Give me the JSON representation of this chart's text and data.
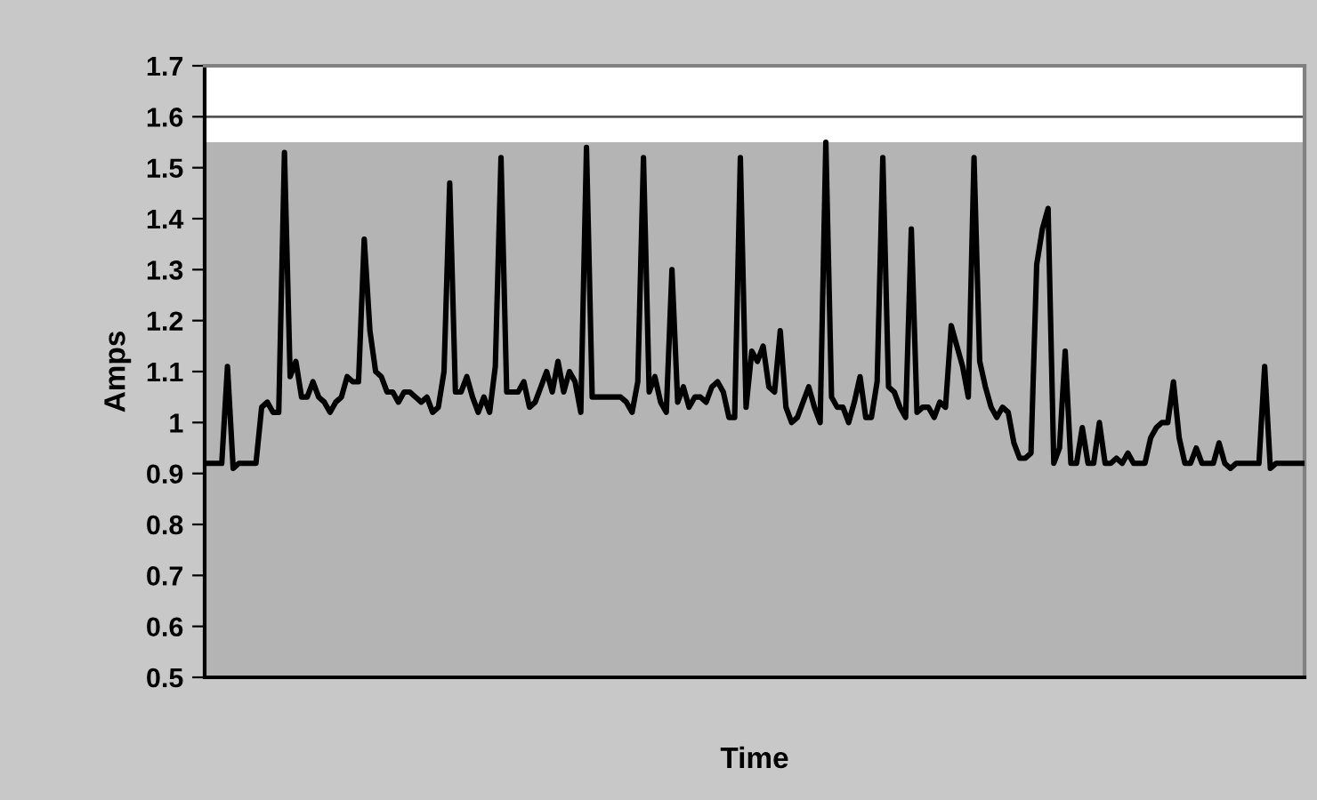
{
  "chart_data": {
    "type": "line",
    "xlabel": "Time",
    "ylabel": "Amps",
    "categories": [
      null,
      null,
      null,
      null,
      null,
      null,
      null,
      null,
      null,
      null,
      null,
      null,
      null,
      null,
      null,
      null,
      null,
      null,
      null,
      null,
      null,
      null,
      null,
      null,
      null,
      null,
      null,
      null,
      null,
      null,
      null,
      null,
      null,
      null,
      null,
      null,
      null,
      null,
      null,
      null,
      null,
      null,
      null,
      null,
      null,
      null,
      null,
      null,
      null,
      null,
      null,
      null,
      null,
      null,
      null,
      null,
      null,
      null,
      null,
      null,
      null,
      null,
      null,
      null,
      null,
      null,
      null,
      null,
      null,
      null,
      null,
      null,
      null,
      null,
      null,
      null,
      null,
      null,
      null,
      null,
      null,
      null,
      null,
      null,
      null,
      null,
      null,
      null,
      null,
      null,
      null,
      null,
      null,
      null,
      null,
      null,
      null,
      null,
      null,
      null,
      null,
      null,
      null,
      null,
      null,
      null,
      null,
      null,
      null,
      null,
      null,
      null,
      null,
      null,
      null,
      null,
      null,
      null,
      null,
      null,
      null,
      null,
      null,
      null,
      null,
      null,
      null,
      null,
      null,
      null,
      null,
      null,
      null,
      null,
      null,
      null,
      null,
      null,
      null,
      null,
      null,
      null,
      null,
      null,
      null,
      null,
      null,
      null,
      null,
      null,
      null,
      null,
      null,
      null,
      null,
      null,
      null,
      null,
      null,
      null,
      null,
      null,
      null,
      null,
      null,
      null,
      null,
      null,
      null,
      null,
      null,
      null,
      null,
      null,
      null,
      null,
      null,
      null,
      null,
      null,
      null,
      null,
      null,
      null,
      null,
      null,
      null,
      null,
      null,
      null,
      null,
      null,
      null,
      null
    ],
    "series": [
      {
        "color": "#000000",
        "values": [
          0.92,
          0.92,
          0.92,
          0.92,
          1.11,
          0.91,
          0.92,
          0.92,
          0.92,
          0.92,
          1.03,
          1.04,
          1.02,
          1.02,
          1.53,
          1.09,
          1.12,
          1.05,
          1.05,
          1.08,
          1.05,
          1.04,
          1.02,
          1.04,
          1.05,
          1.09,
          1.08,
          1.08,
          1.36,
          1.18,
          1.1,
          1.09,
          1.06,
          1.06,
          1.04,
          1.06,
          1.06,
          1.05,
          1.04,
          1.05,
          1.02,
          1.03,
          1.1,
          1.47,
          1.06,
          1.06,
          1.09,
          1.05,
          1.02,
          1.05,
          1.02,
          1.11,
          1.52,
          1.06,
          1.06,
          1.06,
          1.08,
          1.03,
          1.04,
          1.07,
          1.1,
          1.06,
          1.12,
          1.06,
          1.1,
          1.08,
          1.02,
          1.54,
          1.05,
          1.05,
          1.05,
          1.05,
          1.05,
          1.05,
          1.04,
          1.02,
          1.08,
          1.52,
          1.06,
          1.09,
          1.04,
          1.02,
          1.3,
          1.04,
          1.07,
          1.03,
          1.05,
          1.05,
          1.04,
          1.07,
          1.08,
          1.06,
          1.01,
          1.01,
          1.52,
          1.03,
          1.14,
          1.12,
          1.15,
          1.07,
          1.06,
          1.18,
          1.03,
          1.0,
          1.01,
          1.04,
          1.07,
          1.03,
          1.0,
          1.55,
          1.05,
          1.03,
          1.03,
          1.0,
          1.04,
          1.09,
          1.01,
          1.01,
          1.08,
          1.52,
          1.07,
          1.06,
          1.03,
          1.01,
          1.38,
          1.02,
          1.03,
          1.03,
          1.01,
          1.04,
          1.03,
          1.19,
          1.15,
          1.11,
          1.05,
          1.52,
          1.12,
          1.07,
          1.03,
          1.01,
          1.03,
          1.02,
          0.96,
          0.93,
          0.93,
          0.94,
          1.31,
          1.38,
          1.42,
          0.92,
          0.95,
          1.14,
          0.92,
          0.92,
          0.99,
          0.92,
          0.92,
          1.0,
          0.92,
          0.92,
          0.93,
          0.92,
          0.94,
          0.92,
          0.92,
          0.92,
          0.97,
          0.99,
          1.0,
          1.0,
          1.08,
          0.97,
          0.92,
          0.92,
          0.95,
          0.92,
          0.92,
          0.92,
          0.96,
          0.92,
          0.91,
          0.92,
          0.92,
          0.92,
          0.92,
          0.92,
          1.11,
          0.91,
          0.92,
          0.92,
          0.92,
          0.92,
          0.92,
          0.92
        ]
      }
    ],
    "ylim": [
      0.5,
      1.7
    ],
    "yticks": [
      {
        "value": 0.5,
        "label": "0.5"
      },
      {
        "value": 0.6,
        "label": "0.6"
      },
      {
        "value": 0.7,
        "label": "0.7"
      },
      {
        "value": 0.8,
        "label": "0.8"
      },
      {
        "value": 0.9,
        "label": "0.9"
      },
      {
        "value": 1,
        "label": "1"
      },
      {
        "value": 1.1,
        "label": "1.1"
      },
      {
        "value": 1.2,
        "label": "1.2"
      },
      {
        "value": 1.3,
        "label": "1.3"
      },
      {
        "value": 1.4,
        "label": "1.4"
      },
      {
        "value": 1.5,
        "label": "1.5"
      },
      {
        "value": 1.6,
        "label": "1.6"
      },
      {
        "value": 1.7,
        "label": "1.7"
      }
    ],
    "bands": [
      {
        "axis": "y",
        "from": 0.5,
        "to": 1.55,
        "color": "#b4b4b4"
      }
    ],
    "grid": "y",
    "tick_labels": "y",
    "line_style": "solid",
    "marker": "none"
  }
}
